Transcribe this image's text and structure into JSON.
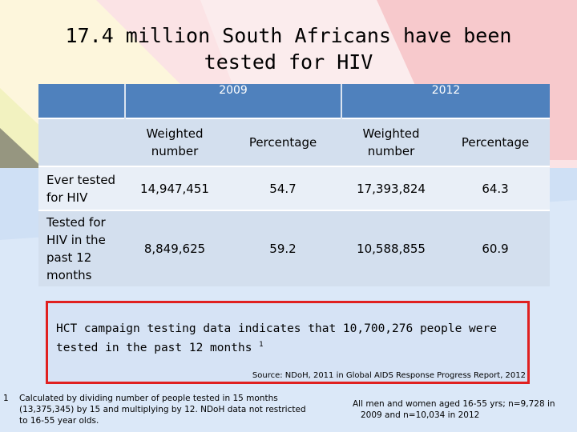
{
  "title": "17.4 million South Africans have been tested for HIV",
  "table": {
    "years": [
      "2009",
      "2012"
    ],
    "columns": [
      "Weighted number",
      "Percentage",
      "Weighted number",
      "Percentage"
    ],
    "rows": [
      {
        "label": "Ever tested for HIV",
        "values": [
          "14,947,451",
          "54.7",
          "17,393,824",
          "64.3"
        ]
      },
      {
        "label": "Tested for HIV in the past 12 months",
        "values": [
          "8,849,625",
          "59.2",
          "10,588,855",
          "60.9"
        ]
      }
    ]
  },
  "callout": {
    "text": "HCT campaign testing data indicates that 10,700,276 people were tested in the past 12 months",
    "superscript": "1",
    "source": "Source: NDoH, 2011 in Global AIDS Response Progress Report, 2012"
  },
  "footnotes": {
    "note_number": "1",
    "note_text": "Calculated by dividing number of people tested in 15 months (13,375,345) by 15 and multiplying by 12. NDoH data not restricted to 16-55 year olds.",
    "sample_text": "All men and women aged 16-55 yrs; n=9,728 in 2009 and n=10,034 in 2012"
  },
  "colors": {
    "header_blue": "#4f81bd",
    "row_light": "#e9eff7",
    "row_dark": "#d3dfee",
    "highlight_red": "#e02020"
  }
}
